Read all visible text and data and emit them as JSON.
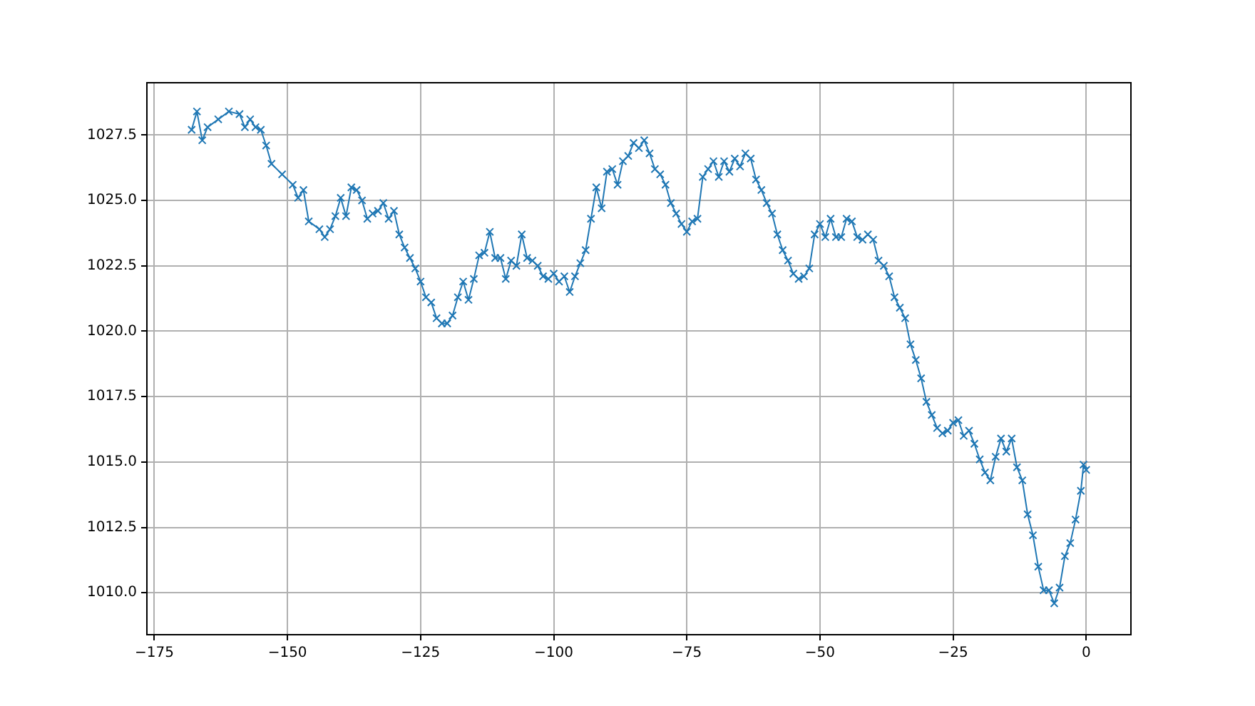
{
  "chart_data": {
    "type": "line",
    "marker": "cross",
    "grid": true,
    "legend": false,
    "xlim": [
      -176.4,
      8.4
    ],
    "ylim": [
      1008.4,
      1029.5
    ],
    "xticks": [
      {
        "value": -175,
        "label": "−175"
      },
      {
        "value": -150,
        "label": "−150"
      },
      {
        "value": -125,
        "label": "−125"
      },
      {
        "value": -100,
        "label": "−100"
      },
      {
        "value": -75,
        "label": "−75"
      },
      {
        "value": -50,
        "label": "−50"
      },
      {
        "value": -25,
        "label": "−25"
      },
      0
    ],
    "yticks": [
      {
        "value": 1010,
        "label": "1010.0"
      },
      1012.5,
      {
        "value": 1015,
        "label": "1015.0"
      },
      1017.5,
      {
        "value": 1020,
        "label": "1020.0"
      },
      1022.5,
      {
        "value": 1025,
        "label": "1025.0"
      },
      1027.5
    ],
    "series": [
      {
        "color": "#1f77b4",
        "x": [
          -168,
          -167,
          -166,
          -165,
          -163,
          -161,
          -159,
          -158,
          -157,
          -156,
          -155,
          -154,
          -153,
          -151,
          -149,
          -148,
          -147,
          -146,
          -144,
          -143,
          -142,
          -141,
          -140,
          -139,
          -138,
          -137,
          -136,
          -135,
          -134,
          -133,
          -132,
          -131,
          -130,
          -129,
          -128,
          -127,
          -126,
          -125,
          -124,
          -123,
          -122,
          -121,
          -120,
          -119,
          -118,
          -117,
          -116,
          -115,
          -114,
          -113,
          -112,
          -111,
          -110,
          -109,
          -108,
          -107,
          -106,
          -105,
          -104,
          -103,
          -102,
          -101,
          -100,
          -99,
          -98,
          -97,
          -96,
          -95,
          -94,
          -93,
          -92,
          -91,
          -90,
          -89,
          -88,
          -87,
          -86,
          -85,
          -84,
          -83,
          -82,
          -81,
          -80,
          -79,
          -78,
          -77,
          -76,
          -75,
          -74,
          -73,
          -72,
          -71,
          -70,
          -69,
          -68,
          -67,
          -66,
          -65,
          -64,
          -63,
          -62,
          -61,
          -60,
          -59,
          -58,
          -57,
          -56,
          -55,
          -54,
          -53,
          -52,
          -51,
          -50,
          -49,
          -48,
          -47,
          -46,
          -45,
          -44,
          -43,
          -42,
          -41,
          -40,
          -39,
          -38,
          -37,
          -36,
          -35,
          -34,
          -33,
          -32,
          -31,
          -30,
          -29,
          -28,
          -27,
          -26,
          -25,
          -24,
          -23,
          -22,
          -21,
          -20,
          -19,
          -18,
          -17,
          -16,
          -15,
          -14,
          -13,
          -12,
          -11,
          -10,
          -9,
          -8,
          -7,
          -6,
          -5,
          -4,
          -3,
          -2,
          -1,
          -0.5,
          0
        ],
        "values": [
          1027.7,
          1028.4,
          1027.3,
          1027.8,
          1028.1,
          1028.4,
          1028.3,
          1027.8,
          1028.1,
          1027.8,
          1027.7,
          1027.1,
          1026.4,
          1026.0,
          1025.6,
          1025.1,
          1025.4,
          1024.2,
          1023.9,
          1023.6,
          1023.9,
          1024.4,
          1025.1,
          1024.4,
          1025.5,
          1025.4,
          1025.0,
          1024.3,
          1024.5,
          1024.6,
          1024.9,
          1024.3,
          1024.6,
          1023.7,
          1023.2,
          1022.8,
          1022.4,
          1021.9,
          1021.3,
          1021.1,
          1020.5,
          1020.3,
          1020.3,
          1020.6,
          1021.3,
          1021.9,
          1021.2,
          1022.0,
          1022.9,
          1023.0,
          1023.8,
          1022.8,
          1022.8,
          1022.0,
          1022.7,
          1022.5,
          1023.7,
          1022.8,
          1022.7,
          1022.5,
          1022.1,
          1022.0,
          1022.2,
          1021.9,
          1022.1,
          1021.5,
          1022.1,
          1022.6,
          1023.1,
          1024.3,
          1025.5,
          1024.7,
          1026.1,
          1026.2,
          1025.6,
          1026.5,
          1026.7,
          1027.2,
          1027.0,
          1027.3,
          1026.8,
          1026.2,
          1026.0,
          1025.6,
          1024.9,
          1024.5,
          1024.1,
          1023.8,
          1024.2,
          1024.3,
          1025.9,
          1026.2,
          1026.5,
          1025.9,
          1026.5,
          1026.1,
          1026.6,
          1026.3,
          1026.8,
          1026.6,
          1025.8,
          1025.4,
          1024.9,
          1024.5,
          1023.7,
          1023.1,
          1022.7,
          1022.2,
          1022.0,
          1022.1,
          1022.4,
          1023.7,
          1024.1,
          1023.6,
          1024.3,
          1023.6,
          1023.6,
          1024.3,
          1024.2,
          1023.6,
          1023.5,
          1023.7,
          1023.5,
          1022.7,
          1022.5,
          1022.1,
          1021.3,
          1020.9,
          1020.5,
          1019.5,
          1018.9,
          1018.2,
          1017.3,
          1016.8,
          1016.3,
          1016.1,
          1016.2,
          1016.5,
          1016.6,
          1016.0,
          1016.2,
          1015.7,
          1015.1,
          1014.6,
          1014.3,
          1015.2,
          1015.9,
          1015.4,
          1015.9,
          1014.8,
          1014.3,
          1013.0,
          1012.2,
          1011.0,
          1010.1,
          1010.1,
          1009.6,
          1010.2,
          1011.4,
          1011.9,
          1012.8,
          1013.9,
          1014.9,
          1014.7
        ]
      }
    ]
  }
}
